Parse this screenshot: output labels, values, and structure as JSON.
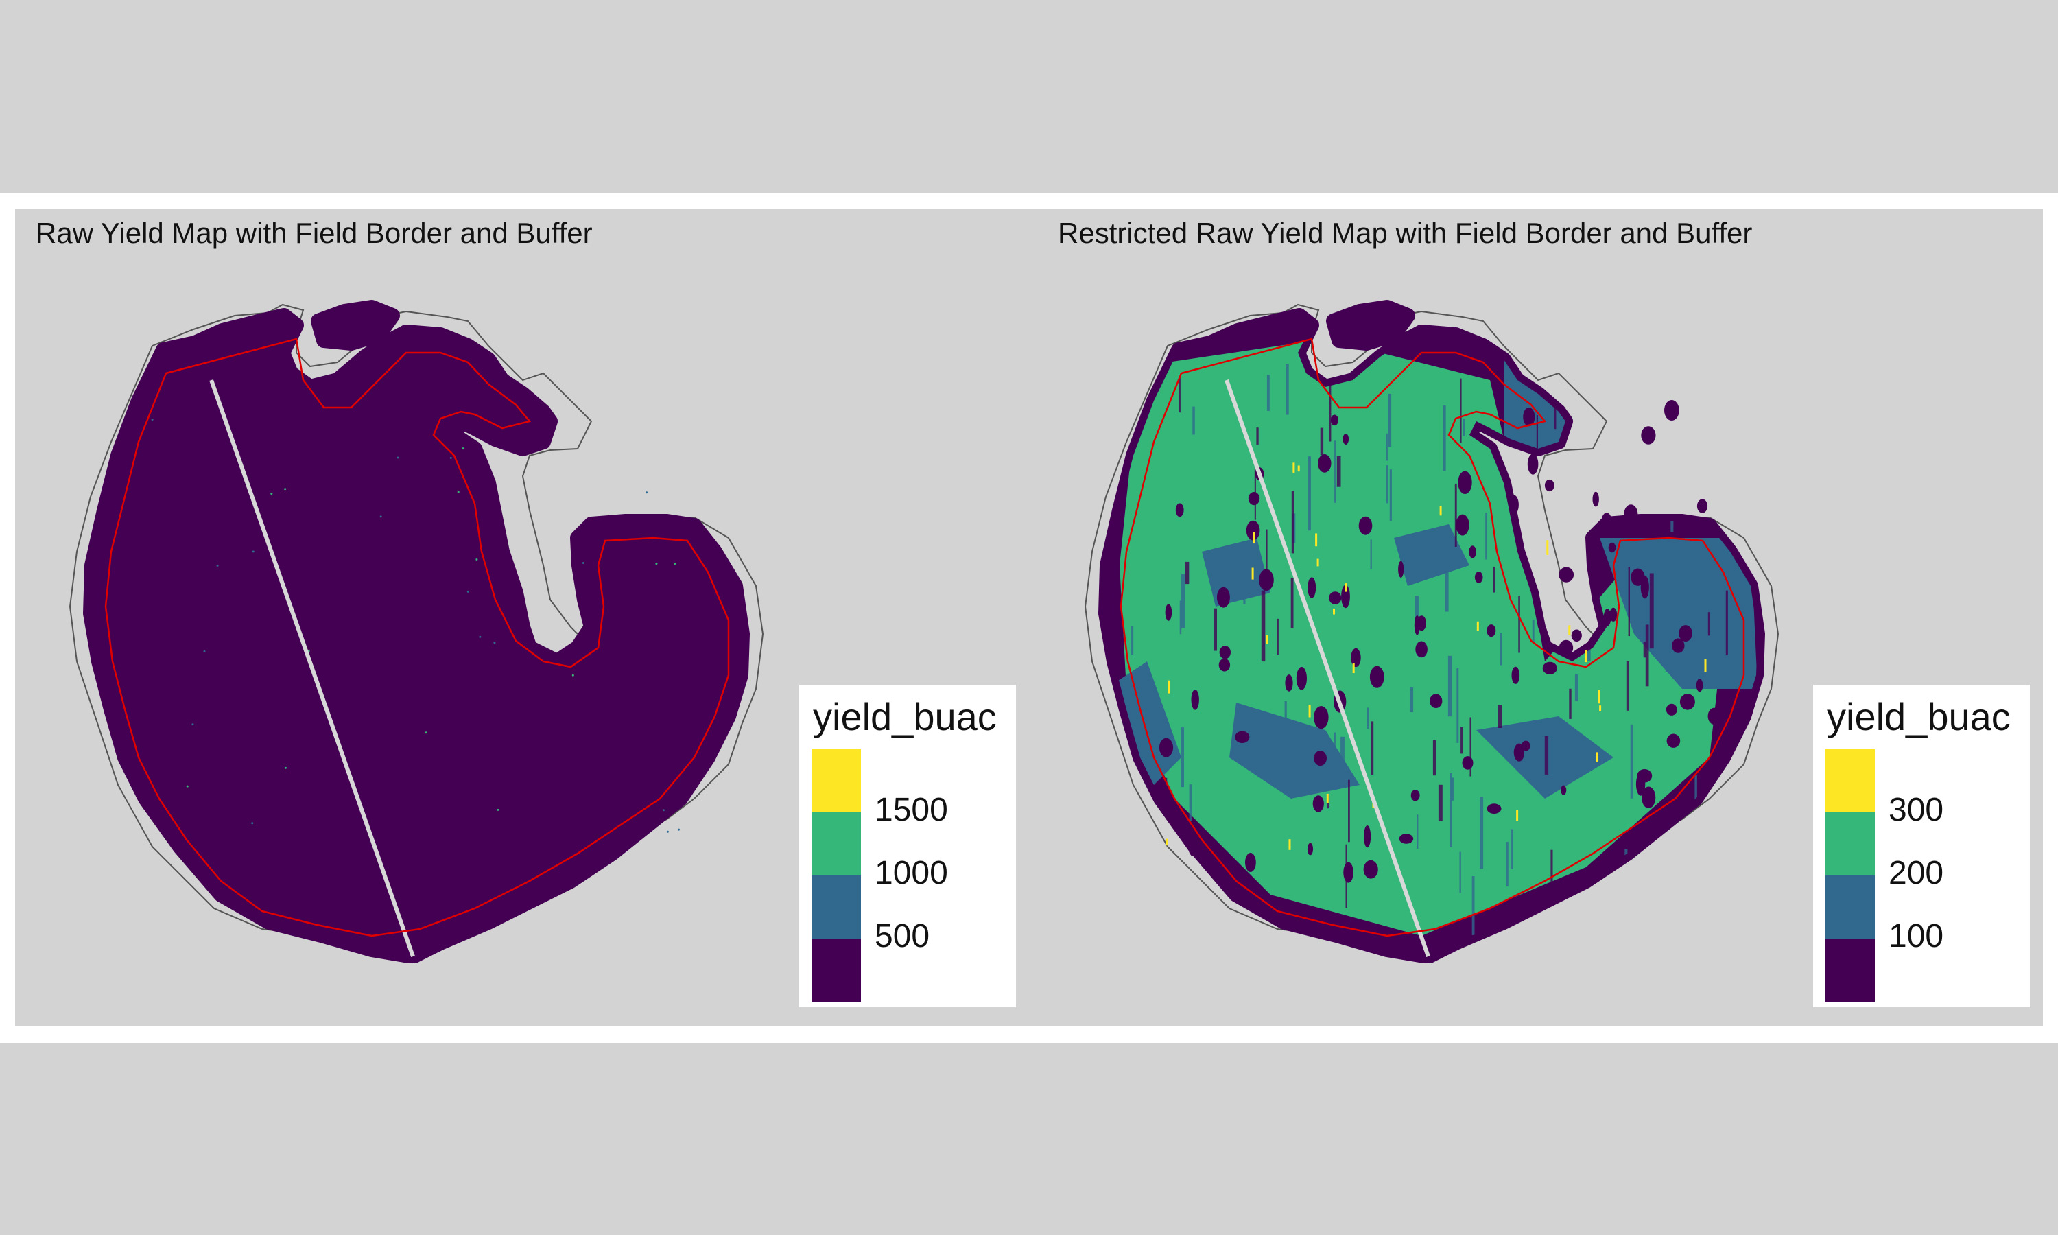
{
  "colors": {
    "page_bg": "#d3d3d3",
    "frame": "#ffffff",
    "dark": "#440154",
    "blue": "#31688e",
    "green": "#35b779",
    "yellow": "#fde725",
    "field_border": "#555555",
    "buffer": "#e00000",
    "gap_line": "#d8d8d8"
  },
  "panels": [
    {
      "title": "Raw Yield Map with Field Border and Buffer",
      "legend": {
        "title": "yield_buac",
        "swatches": [
          "#fde725",
          "#35b779",
          "#31688e",
          "#440154"
        ],
        "ticks": [
          "1500",
          "1000",
          "500"
        ]
      },
      "fill_mode": "uniform-dark"
    },
    {
      "title": "Restricted Raw Yield Map with Field Border and Buffer",
      "legend": {
        "title": "yield_buac",
        "swatches": [
          "#fde725",
          "#35b779",
          "#31688e",
          "#440154"
        ],
        "ticks": [
          "300",
          "200",
          "100"
        ]
      },
      "fill_mode": "mixed-green"
    }
  ]
}
